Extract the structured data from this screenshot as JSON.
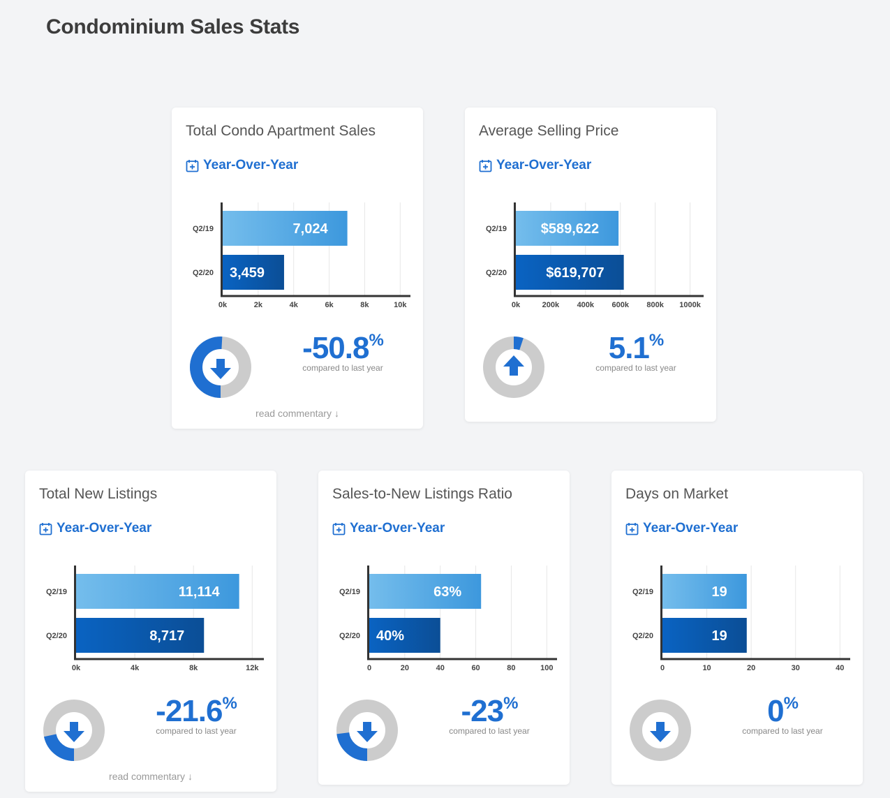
{
  "page_title": "Condominium Sales Stats",
  "colors": {
    "accent": "#1f6fd1",
    "bar_2019": "#5aaee3",
    "bar_2020": "#0a5bb5",
    "donut_bg": "#cccccc"
  },
  "cards": [
    {
      "title": "Total Condo Apartment Sales",
      "period_label": "Year-Over-Year",
      "chart_data": {
        "type": "bar",
        "orientation": "horizontal",
        "categories": [
          "Q2/19",
          "Q2/20"
        ],
        "values": [
          7024,
          3459
        ],
        "value_labels": [
          "7,024",
          "3,459"
        ],
        "xlim": [
          0,
          10500
        ],
        "ticks": [
          0,
          2000,
          4000,
          6000,
          8000,
          10000
        ],
        "tick_labels": [
          "0k",
          "2k",
          "4k",
          "6k",
          "8k",
          "10k"
        ]
      },
      "change_value": "-50.8",
      "change_unit": "%",
      "change_caption": "compared to last year",
      "direction": "down",
      "donut_fraction": 0.508,
      "commentary": "read commentary"
    },
    {
      "title": "Average Selling Price",
      "period_label": "Year-Over-Year",
      "chart_data": {
        "type": "bar",
        "orientation": "horizontal",
        "categories": [
          "Q2/19",
          "Q2/20"
        ],
        "values": [
          589622,
          619707
        ],
        "value_labels": [
          "$589,622",
          "$619,707"
        ],
        "xlim": [
          0,
          1070000
        ],
        "ticks": [
          0,
          200000,
          400000,
          600000,
          800000,
          1000000
        ],
        "tick_labels": [
          "0k",
          "200k",
          "400k",
          "600k",
          "800k",
          "1000k"
        ]
      },
      "change_value": "5.1",
      "change_unit": "%",
      "change_caption": "compared to last year",
      "direction": "up",
      "donut_fraction": 0.051,
      "commentary": ""
    },
    {
      "title": "Total New Listings",
      "period_label": "Year-Over-Year",
      "chart_data": {
        "type": "bar",
        "orientation": "horizontal",
        "categories": [
          "Q2/19",
          "Q2/20"
        ],
        "values": [
          11114,
          8717
        ],
        "value_labels": [
          "11,114",
          "8,717"
        ],
        "xlim": [
          0,
          12700
        ],
        "ticks": [
          0,
          4000,
          8000,
          12000
        ],
        "tick_labels": [
          "0k",
          "4k",
          "8k",
          "12k"
        ]
      },
      "change_value": "-21.6",
      "change_unit": "%",
      "change_caption": "compared to last year",
      "direction": "down",
      "donut_fraction": 0.216,
      "commentary": "read commentary"
    },
    {
      "title": "Sales-to-New Listings Ratio",
      "period_label": "Year-Over-Year",
      "chart_data": {
        "type": "bar",
        "orientation": "horizontal",
        "categories": [
          "Q2/19",
          "Q2/20"
        ],
        "values": [
          63,
          40
        ],
        "value_labels": [
          "63%",
          "40%"
        ],
        "xlim": [
          0,
          105
        ],
        "ticks": [
          0,
          20,
          40,
          60,
          80,
          100
        ],
        "tick_labels": [
          "0",
          "20",
          "40",
          "60",
          "80",
          "100"
        ]
      },
      "change_value": "-23",
      "change_unit": "%",
      "change_caption": "compared to last year",
      "direction": "down",
      "donut_fraction": 0.23,
      "commentary": ""
    },
    {
      "title": "Days on Market",
      "period_label": "Year-Over-Year",
      "chart_data": {
        "type": "bar",
        "orientation": "horizontal",
        "categories": [
          "Q2/19",
          "Q2/20"
        ],
        "values": [
          19,
          19
        ],
        "value_labels": [
          "19",
          "19"
        ],
        "xlim": [
          0,
          42
        ],
        "ticks": [
          0,
          10,
          20,
          30,
          40
        ],
        "tick_labels": [
          "0",
          "10",
          "20",
          "30",
          "40"
        ]
      },
      "change_value": "0",
      "change_unit": "%",
      "change_caption": "compared to last year",
      "direction": "down",
      "donut_fraction": 0,
      "commentary": ""
    }
  ]
}
